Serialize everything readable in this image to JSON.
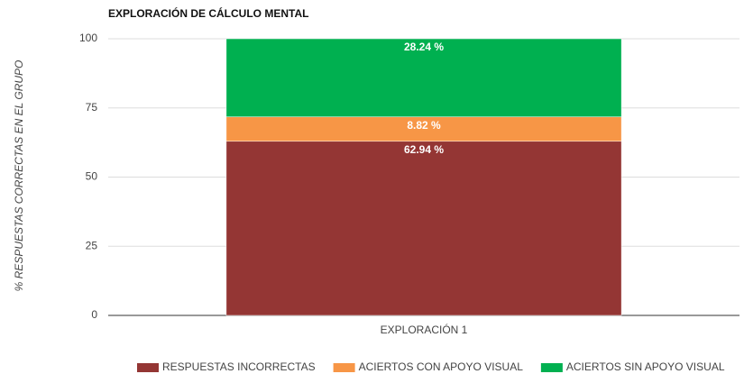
{
  "chart_data": {
    "type": "stacked_bar",
    "title": "EXPLORACIÓN DE CÁLCULO MENTAL",
    "y_label": "% RESPUESTAS CORRECTAS EN EL GRUPO",
    "categories": [
      "EXPLORACIÓN 1"
    ],
    "series": [
      {
        "name": "RESPUESTAS INCORRECTAS",
        "color": "#943634",
        "values": [
          62.94
        ],
        "value_labels": [
          "62.94 %"
        ]
      },
      {
        "name": "ACIERTOS CON APOYO VISUAL",
        "color": "#f79646",
        "values": [
          8.82
        ],
        "value_labels": [
          "8.82 %"
        ]
      },
      {
        "name": "ACIERTOS SIN APOYO VISUAL",
        "color": "#00b050",
        "values": [
          28.24
        ],
        "value_labels": [
          "28.24 %"
        ]
      }
    ],
    "ylim": [
      0,
      100
    ],
    "yticks": [
      0,
      25,
      50,
      75,
      100
    ],
    "grid": true,
    "legend": "bottom"
  }
}
